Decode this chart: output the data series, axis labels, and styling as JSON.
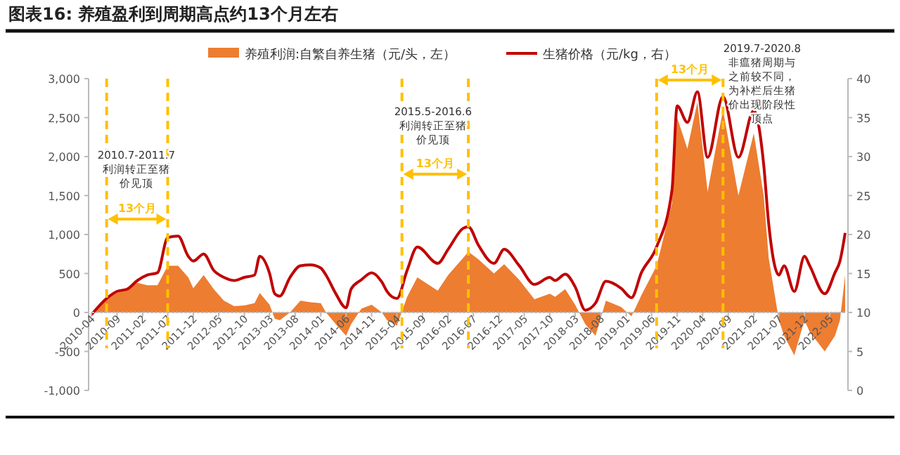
{
  "chart_data": {
    "type": "area",
    "title": "图表16: 养殖盈利到周期高点约13个月左右",
    "x": [
      "2010-04",
      "2010-07",
      "2010-09",
      "2010-11",
      "2011-01",
      "2011-03",
      "2011-05",
      "2011-07",
      "2011-09",
      "2011-11",
      "2011-12",
      "2012-02",
      "2012-04",
      "2012-06",
      "2012-08",
      "2012-10",
      "2012-12",
      "2013-01",
      "2013-03",
      "2013-04",
      "2013-05",
      "2013-07",
      "2013-09",
      "2013-11",
      "2014-01",
      "2014-02",
      "2014-04",
      "2014-06",
      "2014-07",
      "2014-09",
      "2014-11",
      "2015-01",
      "2015-02",
      "2015-04",
      "2015-06",
      "2015-08",
      "2015-12",
      "2016-02",
      "2016-05",
      "2016-06",
      "2016-08",
      "2016-11",
      "2017-01",
      "2017-04",
      "2017-07",
      "2017-10",
      "2017-11",
      "2018-01",
      "2018-03",
      "2018-05",
      "2018-07",
      "2018-09",
      "2018-12",
      "2019-02",
      "2019-04",
      "2019-07",
      "2019-10",
      "2019-11",
      "2020-01",
      "2020-03",
      "2020-05",
      "2020-08",
      "2020-11",
      "2021-02",
      "2021-04",
      "2021-05",
      "2021-07",
      "2021-08",
      "2021-10",
      "2021-12",
      "2022-01",
      "2022-04",
      "2022-06",
      "2022-07",
      "2022-08"
    ],
    "series": [
      {
        "name": "养殖利润:自繁自养生猪（元/头，左）",
        "color": "#ed7d31",
        "values": [
          -30,
          200,
          250,
          300,
          380,
          350,
          350,
          600,
          600,
          450,
          310,
          480,
          300,
          150,
          80,
          90,
          120,
          250,
          100,
          -80,
          -100,
          0,
          150,
          130,
          120,
          0,
          -150,
          -300,
          -150,
          50,
          100,
          0,
          -100,
          -170,
          200,
          450,
          280,
          480,
          700,
          780,
          680,
          500,
          620,
          420,
          170,
          240,
          200,
          300,
          100,
          -150,
          -300,
          150,
          70,
          -50,
          220,
          600,
          1400,
          2500,
          2100,
          2700,
          1550,
          2600,
          1500,
          2300,
          1500,
          700,
          -100,
          -300,
          -550,
          -100,
          -250,
          -500,
          -300,
          -100,
          480
        ]
      },
      {
        "name": "生猪价格（元/kg，右）",
        "type": "line",
        "axis": "y2",
        "color": "#c00000",
        "values": [
          9.7,
          11.8,
          12.7,
          13.0,
          14.1,
          14.8,
          15.1,
          19.6,
          19.8,
          17.2,
          16.6,
          17.5,
          15.4,
          14.5,
          14.1,
          14.5,
          14.8,
          17.2,
          15.0,
          12.4,
          12.1,
          14.5,
          16.0,
          16.1,
          15.7,
          14.8,
          12.4,
          10.6,
          13.0,
          14.2,
          15.1,
          13.9,
          12.7,
          11.8,
          15.4,
          18.4,
          16.3,
          18.1,
          20.8,
          21.0,
          18.6,
          16.3,
          18.1,
          16.0,
          13.6,
          14.5,
          14.1,
          14.9,
          13.3,
          10.3,
          11.2,
          14.0,
          13.1,
          11.9,
          15.1,
          18.4,
          25.7,
          36.5,
          34.4,
          38.3,
          29.9,
          37.7,
          29.9,
          35.9,
          29.0,
          21.4,
          14.8,
          16.0,
          12.7,
          17.2,
          16.0,
          12.4,
          15.1,
          16.6,
          20.2
        ]
      }
    ],
    "xlim": [
      "2010-04",
      "2022-08"
    ],
    "xticks": [
      "2010-04",
      "2010-09",
      "2011-02",
      "2011-07",
      "2011-12",
      "2012-05",
      "2012-10",
      "2013-03",
      "2013-08",
      "2014-01",
      "2014-06",
      "2014-11",
      "2015-04",
      "2015-09",
      "2016-02",
      "2016-07",
      "2016-12",
      "2017-05",
      "2017-10",
      "2018-03",
      "2018-08",
      "2019-01",
      "2019-06",
      "2019-11",
      "2020-04",
      "2020-09",
      "2021-02",
      "2021-07",
      "2021-12",
      "2022-05"
    ],
    "ylim": [
      -1000,
      3000
    ],
    "yticks": [
      {
        "value": -1000,
        "label": "-1,000"
      },
      {
        "value": -500,
        "label": "-500"
      },
      0,
      500,
      {
        "value": 1000,
        "label": "1,000"
      },
      {
        "value": 1500,
        "label": "1,500"
      },
      {
        "value": 2000,
        "label": "2,000"
      },
      {
        "value": 2500,
        "label": "2,500"
      },
      {
        "value": 3000,
        "label": "3,000"
      }
    ],
    "y2lim": [
      0,
      40
    ],
    "y2ticks": [
      0,
      5,
      10,
      15,
      20,
      25,
      30,
      35,
      40
    ],
    "legend": "top",
    "ref_lines": [
      {
        "axis": "x",
        "value": "2010-07",
        "color": "#ffc000",
        "line_style": "dashed"
      },
      {
        "axis": "x",
        "value": "2011-07",
        "color": "#ffc000",
        "line_style": "dashed"
      },
      {
        "axis": "x",
        "value": "2015-05",
        "color": "#ffc000",
        "line_style": "dashed"
      },
      {
        "axis": "x",
        "value": "2016-06",
        "color": "#ffc000",
        "line_style": "dashed"
      },
      {
        "axis": "x",
        "value": "2019-07",
        "color": "#ffc000",
        "line_style": "dashed"
      },
      {
        "axis": "x",
        "value": "2020-08",
        "color": "#ffc000",
        "line_style": "dashed"
      }
    ],
    "annotations": [
      "2010.7-2011.7利润转正至猪价见顶",
      "13个月",
      "2015.5-2016.6利润转正至猪价见顶",
      "13个月",
      "2019.7-2020.8非瘟猪周期与之前较不同，为补栏后生猪价出现阶段性顶点",
      "13个月"
    ]
  }
}
